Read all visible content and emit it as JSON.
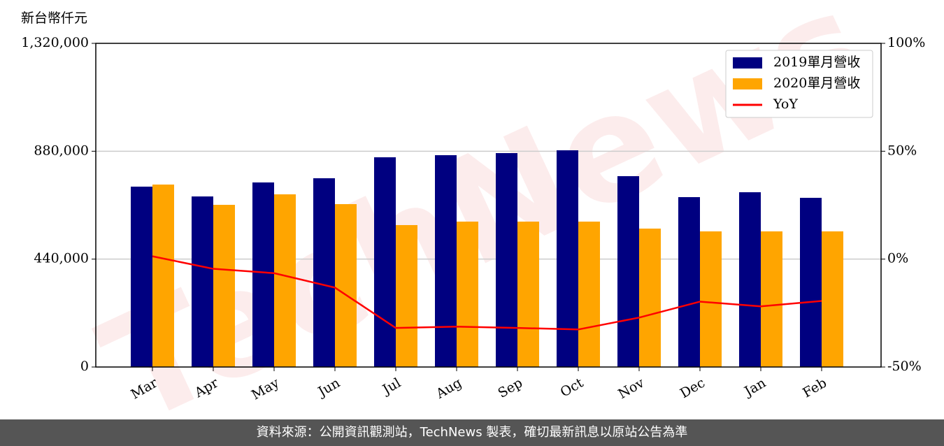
{
  "chart_data": {
    "type": "bar_line",
    "y_label": "新台幣仟元",
    "watermark": "TechNews",
    "footer": "資料來源：公開資訊觀測站，TechNews 製表，確切最新訊息以原站公告為準",
    "categories": [
      "Mar",
      "Apr",
      "May",
      "Jun",
      "Jul",
      "Aug",
      "Sep",
      "Oct",
      "Nov",
      "Dec",
      "Jan",
      "Feb"
    ],
    "series": [
      {
        "name": "2019單月營收",
        "color": "#000080",
        "type": "bar",
        "values": [
          735600,
          695600,
          752700,
          769800,
          855300,
          863900,
          872400,
          883800,
          778300,
          692800,
          712800,
          690000
        ]
      },
      {
        "name": "2020單月營收",
        "color": "#ffa500",
        "type": "bar",
        "values": [
          744100,
          661400,
          704200,
          664300,
          578800,
          593000,
          593000,
          593000,
          564500,
          553100,
          553100,
          553100
        ]
      },
      {
        "name": "YoY",
        "color": "#ff0000",
        "type": "line",
        "axis": "y2",
        "values": [
          1.3,
          -4.5,
          -6.5,
          -13.2,
          -31.9,
          -31.3,
          -31.9,
          -32.6,
          -27.1,
          -19.7,
          -21.9,
          -19.4
        ]
      }
    ],
    "ylim": [
      0,
      1320000
    ],
    "yticks": [
      {
        "value": 0,
        "label": "0"
      },
      {
        "value": 440000,
        "label": "440,000"
      },
      {
        "value": 880000,
        "label": "880,000"
      },
      {
        "value": 1320000,
        "label": "1,320,000"
      }
    ],
    "y2lim": [
      -50,
      100
    ],
    "y2ticks": [
      {
        "value": -50,
        "label": "-50%"
      },
      {
        "value": 0,
        "label": "0%"
      },
      {
        "value": 50,
        "label": "50%"
      },
      {
        "value": 100,
        "label": "100%"
      }
    ],
    "grid": true,
    "legend_loc": "upper right"
  }
}
